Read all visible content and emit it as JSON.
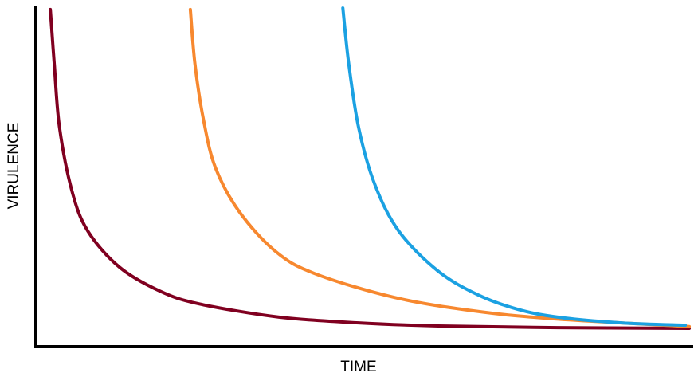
{
  "chart_data": {
    "type": "line",
    "x_label": "TIME",
    "y_label": "VIRULENCE",
    "xlim": [
      0,
      100
    ],
    "ylim": [
      0,
      100
    ],
    "series": [
      {
        "color": "#800020",
        "x": [
          2.2,
          2.8,
          3.6,
          5.5,
          7.9,
          12.7,
          18.8,
          24.8,
          37,
          49.1,
          61.2,
          79.4,
          99.4
        ],
        "values": [
          99.1,
          83.1,
          64.4,
          45.7,
          34,
          23.4,
          16.4,
          12.6,
          8.7,
          7,
          6.1,
          5.6,
          5.4
        ]
      },
      {
        "color": "#f7882f",
        "x": [
          23.5,
          24.2,
          25.5,
          27.3,
          30.9,
          36.4,
          42.4,
          54.5,
          66.7,
          78.8,
          99.4
        ],
        "values": [
          99.1,
          83.1,
          66.7,
          52.7,
          39.8,
          28.1,
          21.5,
          14.5,
          10.5,
          8.2,
          5.9
        ]
      },
      {
        "color": "#1ba1e2",
        "x": [
          46.7,
          47.6,
          49.1,
          51.5,
          55.2,
          61.2,
          67.3,
          73.3,
          79.4,
          89.1,
          98.8
        ],
        "values": [
          99.5,
          83.1,
          64.4,
          48,
          34,
          22.2,
          15.2,
          11,
          8.7,
          7,
          6.3
        ]
      }
    ]
  }
}
